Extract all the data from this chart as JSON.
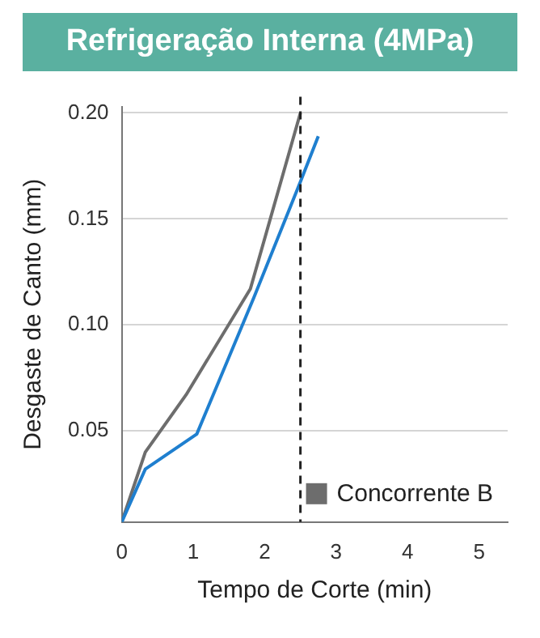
{
  "chart_data": {
    "type": "line",
    "title": "Refrigeração Interna (4MPa)",
    "xlabel": "Tempo de Corte (min)",
    "ylabel": "Desgaste de Canto (mm)",
    "series": [
      {
        "color": "#1f7fcf",
        "x": [
          0,
          0.33,
          1.05,
          1.85,
          2.5,
          2.75
        ],
        "values": [
          0.007,
          0.032,
          0.0485,
          0.113,
          0.1675,
          0.189
        ]
      },
      {
        "name": "Concorrente B",
        "color": "#6d6d6d",
        "x": [
          0,
          0.33,
          0.9,
          1.8,
          2.5
        ],
        "values": [
          0.007,
          0.04,
          0.067,
          0.117,
          0.2
        ]
      }
    ],
    "xlim": [
      0,
      5.4
    ],
    "xticks": [
      0,
      1,
      2,
      3,
      4,
      5
    ],
    "ylim": [
      0.007,
      0.203
    ],
    "yticks": [
      {
        "value": 0.05,
        "label": "0.05"
      },
      {
        "value": 0.1,
        "label": "0.10"
      },
      {
        "value": 0.15,
        "label": "0.15"
      },
      {
        "value": 0.2,
        "label": "0.20"
      }
    ],
    "ref_lines": [
      {
        "axis": "x",
        "value": 2.5,
        "color": "#222222",
        "line_style": "dashed"
      }
    ],
    "grid": "y",
    "legend": "bottom right",
    "marker": "none",
    "line_style": "solid"
  }
}
